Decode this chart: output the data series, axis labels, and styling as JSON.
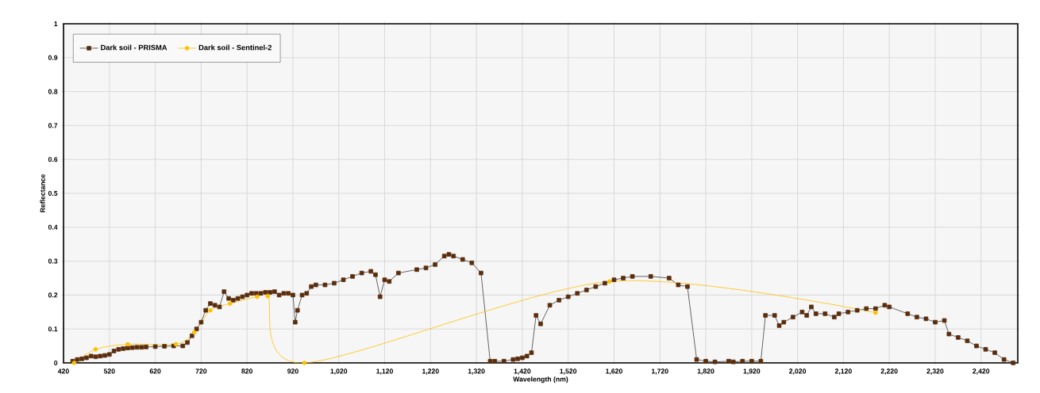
{
  "chart_data": {
    "type": "line",
    "xlabel": "Wavelength (nm)",
    "ylabel": "Reflectance",
    "xlim": [
      420,
      2500
    ],
    "ylim": [
      0,
      1
    ],
    "xticks": [
      420,
      520,
      620,
      720,
      820,
      920,
      {
        "value": 1020,
        "label": "1,020"
      },
      {
        "value": 1120,
        "label": "1,120"
      },
      {
        "value": 1220,
        "label": "1,220"
      },
      {
        "value": 1320,
        "label": "1,320"
      },
      {
        "value": 1420,
        "label": "1,420"
      },
      {
        "value": 1520,
        "label": "1,520"
      },
      {
        "value": 1620,
        "label": "1,620"
      },
      {
        "value": 1720,
        "label": "1,720"
      },
      {
        "value": 1820,
        "label": "1,820"
      },
      {
        "value": 1920,
        "label": "1,920"
      },
      {
        "value": 2020,
        "label": "2,020"
      },
      {
        "value": 2120,
        "label": "2,120"
      },
      {
        "value": 2220,
        "label": "2,220"
      },
      {
        "value": 2320,
        "label": "2,320"
      },
      {
        "value": 2420,
        "label": "2,420"
      }
    ],
    "yticks": [
      0,
      0.1,
      0.2,
      0.3,
      0.4,
      0.5,
      0.6,
      0.7,
      0.8,
      0.9,
      1
    ],
    "grid": true,
    "legend": "top left",
    "series": [
      {
        "name": "Dark soil - PRISMA",
        "color": "#5a2d0c",
        "marker": "square",
        "x": [
          440,
          450,
          460,
          470,
          480,
          490,
          500,
          510,
          520,
          530,
          540,
          550,
          560,
          570,
          580,
          590,
          600,
          620,
          640,
          660,
          680,
          690,
          700,
          710,
          720,
          730,
          740,
          750,
          760,
          770,
          780,
          790,
          800,
          810,
          820,
          830,
          840,
          850,
          860,
          870,
          880,
          890,
          900,
          910,
          920,
          925,
          930,
          940,
          950,
          960,
          970,
          990,
          1010,
          1030,
          1050,
          1070,
          1090,
          1100,
          1110,
          1120,
          1130,
          1150,
          1190,
          1210,
          1230,
          1250,
          1260,
          1270,
          1290,
          1310,
          1330,
          1350,
          1360,
          1380,
          1400,
          1410,
          1420,
          1430,
          1440,
          1450,
          1460,
          1480,
          1500,
          1520,
          1540,
          1560,
          1580,
          1600,
          1620,
          1640,
          1660,
          1700,
          1740,
          1760,
          1780,
          1800,
          1820,
          1840,
          1870,
          1880,
          1900,
          1920,
          1940,
          1950,
          1970,
          1980,
          1990,
          2010,
          2030,
          2040,
          2050,
          2060,
          2080,
          2100,
          2110,
          2130,
          2150,
          2170,
          2190,
          2210,
          2220,
          2260,
          2280,
          2300,
          2320,
          2340,
          2350,
          2370,
          2390,
          2410,
          2430,
          2450,
          2470,
          2490
        ],
        "values": [
          0.005,
          0.01,
          0.012,
          0.015,
          0.02,
          0.018,
          0.02,
          0.022,
          0.025,
          0.035,
          0.04,
          0.042,
          0.044,
          0.045,
          0.046,
          0.046,
          0.047,
          0.048,
          0.049,
          0.05,
          0.05,
          0.06,
          0.08,
          0.1,
          0.12,
          0.155,
          0.175,
          0.17,
          0.165,
          0.21,
          0.19,
          0.185,
          0.19,
          0.195,
          0.2,
          0.205,
          0.205,
          0.205,
          0.208,
          0.208,
          0.21,
          0.2,
          0.205,
          0.205,
          0.2,
          0.12,
          0.155,
          0.2,
          0.205,
          0.225,
          0.23,
          0.23,
          0.235,
          0.245,
          0.255,
          0.265,
          0.27,
          0.26,
          0.195,
          0.245,
          0.24,
          0.265,
          0.275,
          0.28,
          0.29,
          0.315,
          0.32,
          0.315,
          0.305,
          0.295,
          0.265,
          0.005,
          0.005,
          0.005,
          0.01,
          0.012,
          0.015,
          0.02,
          0.03,
          0.14,
          0.115,
          0.17,
          0.185,
          0.195,
          0.205,
          0.215,
          0.225,
          0.235,
          0.245,
          0.25,
          0.255,
          0.255,
          0.25,
          0.23,
          0.225,
          0.01,
          0.005,
          0.003,
          0.005,
          0.003,
          0.005,
          0.005,
          0.005,
          0.14,
          0.14,
          0.11,
          0.12,
          0.135,
          0.15,
          0.14,
          0.165,
          0.145,
          0.145,
          0.135,
          0.145,
          0.15,
          0.155,
          0.16,
          0.16,
          0.17,
          0.165,
          0.145,
          0.135,
          0.13,
          0.12,
          0.125,
          0.085,
          0.075,
          0.065,
          0.05,
          0.04,
          0.03,
          0.01,
          0.0
        ]
      },
      {
        "name": "Dark soil - Sentinel-2",
        "color": "#ffc000",
        "marker": "circle",
        "x": [
          443,
          490,
          560,
          665,
          705,
          740,
          783,
          842,
          865,
          945,
          1610,
          2190
        ],
        "values": [
          0.0,
          0.04,
          0.055,
          0.055,
          0.09,
          0.155,
          0.175,
          0.195,
          0.197,
          0.0,
          0.24,
          0.148
        ]
      }
    ]
  }
}
